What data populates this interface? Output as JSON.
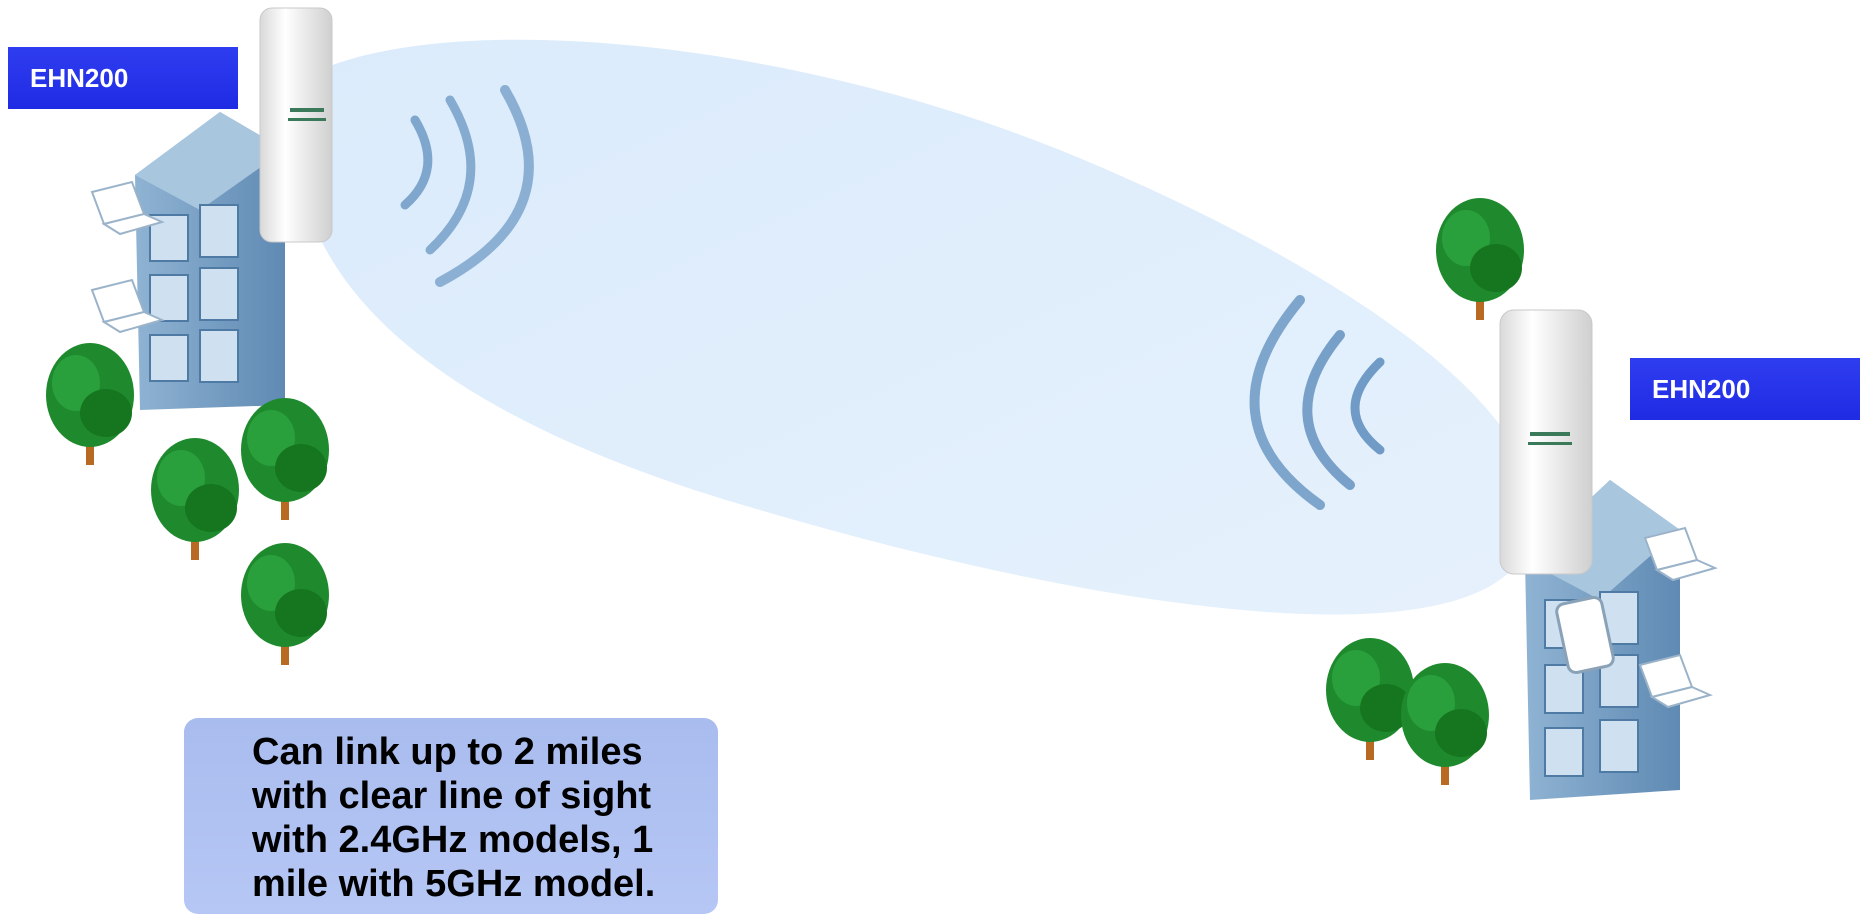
{
  "diagram": {
    "left_site": {
      "device_label": "EHN200"
    },
    "right_site": {
      "device_label": "EHN200"
    },
    "note": {
      "lines": [
        "Can link up to 2 miles",
        "with clear line of sight",
        "with 2.4GHz models, 1",
        "mile with 5GHz model."
      ]
    }
  },
  "colors": {
    "link_beam": "#dcebfa",
    "signal_wave": "#5f8fbf",
    "label_bg": "#2a36ea",
    "note_bg": "#b0c2f2",
    "tree_green": "#1f8a2e",
    "building_blue": "#7fa7c9"
  }
}
